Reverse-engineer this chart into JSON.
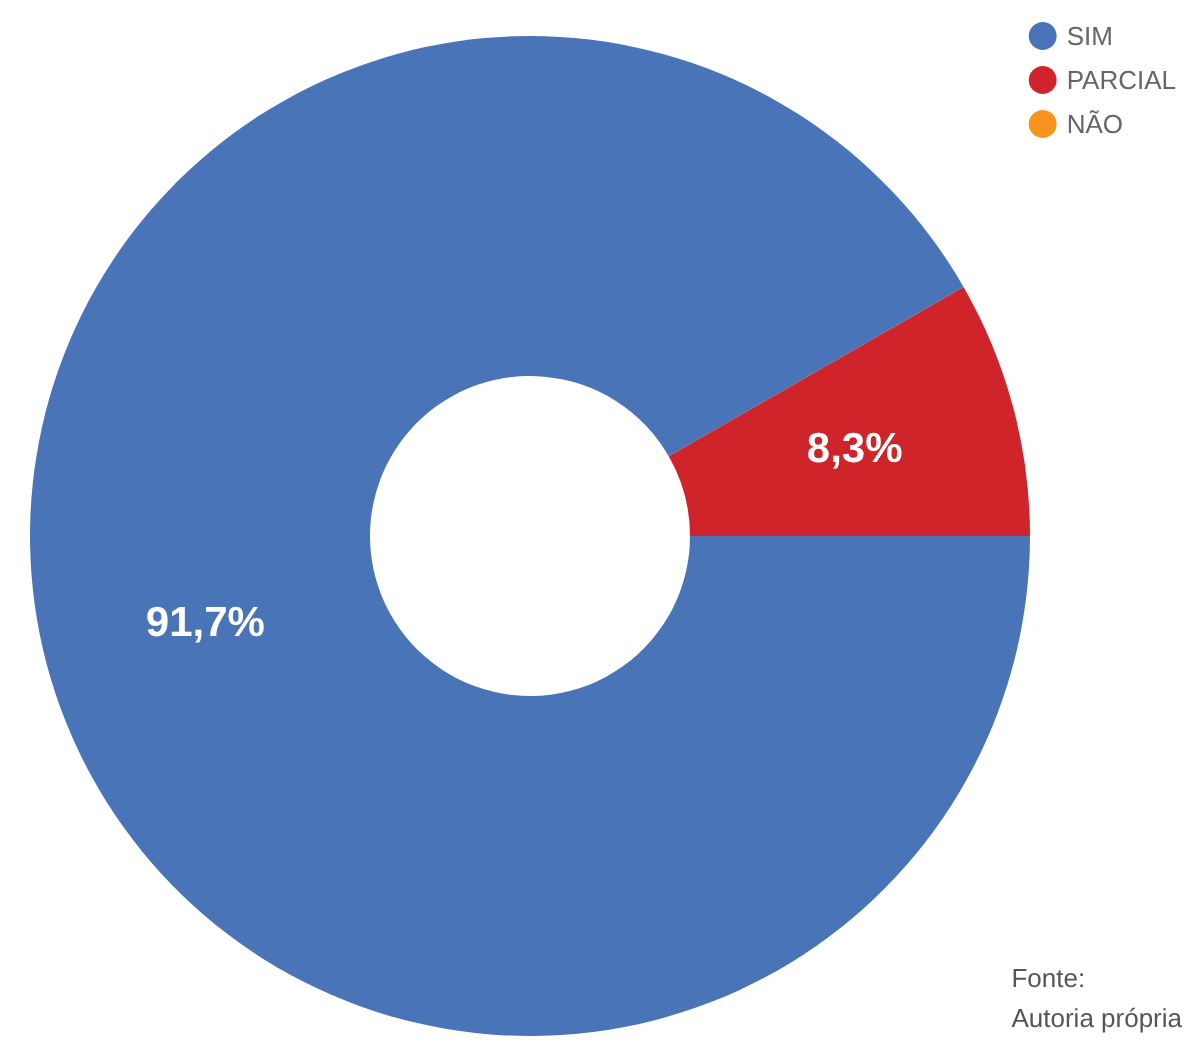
{
  "chart_data": {
    "type": "donut",
    "categories": [
      "SIM",
      "PARCIAL",
      "NÃO"
    ],
    "values": [
      91.7,
      8.3,
      0
    ],
    "colors": [
      "#4a74b8",
      "#d0242b",
      "#f7941d"
    ],
    "value_labels": [
      "91,7%",
      "8,3%",
      null
    ],
    "legend": "top right",
    "annotations": [
      "Fonte:\nAutoria própria"
    ]
  }
}
